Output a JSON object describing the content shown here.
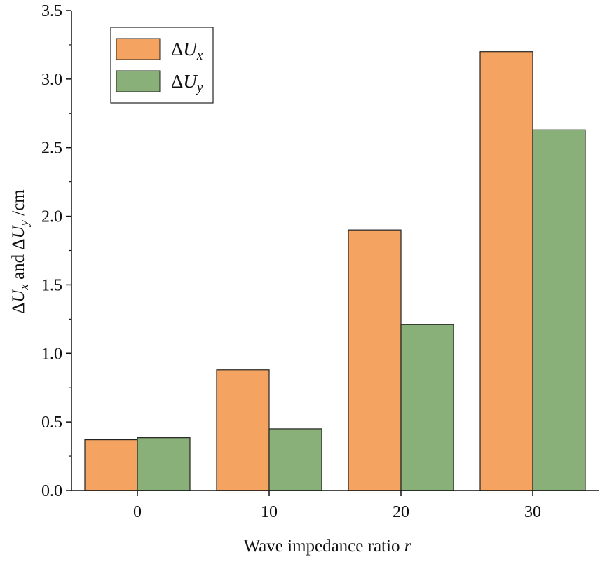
{
  "chart_data": {
    "type": "bar",
    "categories": [
      "0",
      "10",
      "20",
      "30"
    ],
    "series": [
      {
        "name": "ΔUx",
        "symbol": "Δ",
        "var": "U",
        "sub": "x",
        "color": "#F4A460",
        "values": [
          0.37,
          0.88,
          1.9,
          3.2
        ]
      },
      {
        "name": "ΔUy",
        "symbol": "Δ",
        "var": "U",
        "sub": "y",
        "color": "#8AB07A",
        "values": [
          0.385,
          0.45,
          1.21,
          2.63
        ]
      }
    ],
    "ylim": [
      0,
      3.5
    ],
    "yticks": [
      "0.0",
      "0.5",
      "1.0",
      "1.5",
      "2.0",
      "2.5",
      "3.0",
      "3.5"
    ],
    "xlabel": {
      "text": "Wave impedance ratio",
      "var": "r"
    },
    "ylabel": {
      "delta": "Δ",
      "var": "U",
      "sub1": "x",
      "mid": " and ",
      "sub2": "y",
      "unit": " /cm"
    },
    "legend_position": "top-left",
    "grid": false
  }
}
